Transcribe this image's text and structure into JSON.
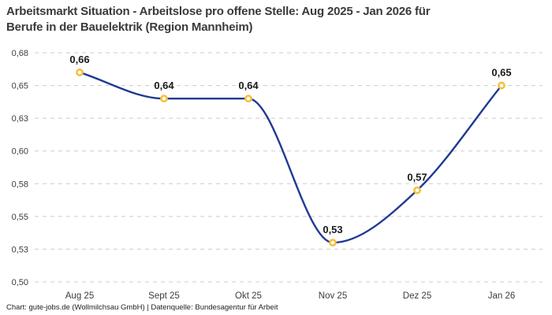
{
  "header": {
    "title_line1": "Arbeitsmarkt Situation - Arbeitslose pro offene Stelle: Aug 2025 - Jan 2026 für",
    "title_line2": "Berufe in der Bauelektrik (Region Mannheim)"
  },
  "footer": {
    "credit": "Chart: gute-jobs.de (Wollmilchsau GmbH) | Datenquelle: Bundesagentur für Arbeit"
  },
  "chart_data": {
    "type": "line",
    "title": "Arbeitsmarkt Situation - Arbeitslose pro offene Stelle: Aug 2025 - Jan 2026 für Berufe in der Bauelektrik (Region Mannheim)",
    "categories": [
      "Aug 25",
      "Sept 25",
      "Okt 25",
      "Nov 25",
      "Dez 25",
      "Jan 26"
    ],
    "values": [
      0.66,
      0.64,
      0.64,
      0.53,
      0.57,
      0.65
    ],
    "value_labels": [
      "0,66",
      "0,64",
      "0,64",
      "0,53",
      "0,57",
      "0,65"
    ],
    "xlabel": "",
    "ylabel": "",
    "ylim": [
      0.5,
      0.675
    ],
    "y_ticks": [
      {
        "value": 0.675,
        "label": "0,68"
      },
      {
        "value": 0.65,
        "label": "0,65"
      },
      {
        "value": 0.625,
        "label": "0,63"
      },
      {
        "value": 0.6,
        "label": "0,60"
      },
      {
        "value": 0.575,
        "label": "0,58"
      },
      {
        "value": 0.55,
        "label": "0,55"
      },
      {
        "value": 0.525,
        "label": "0,53"
      },
      {
        "value": 0.5,
        "label": "0,50"
      }
    ],
    "grid": "horizontal-dashed",
    "legend": "none",
    "interpolation": "monotone",
    "colors": {
      "line": "#1F3A93",
      "marker_ring": "#F5C03C",
      "marker_fill": "#FFFFFF",
      "grid": "#CCCCCC",
      "tick_text": "#3C3C3C",
      "value_text": "#1A1A1A",
      "title_text": "#3A3A3A"
    }
  }
}
